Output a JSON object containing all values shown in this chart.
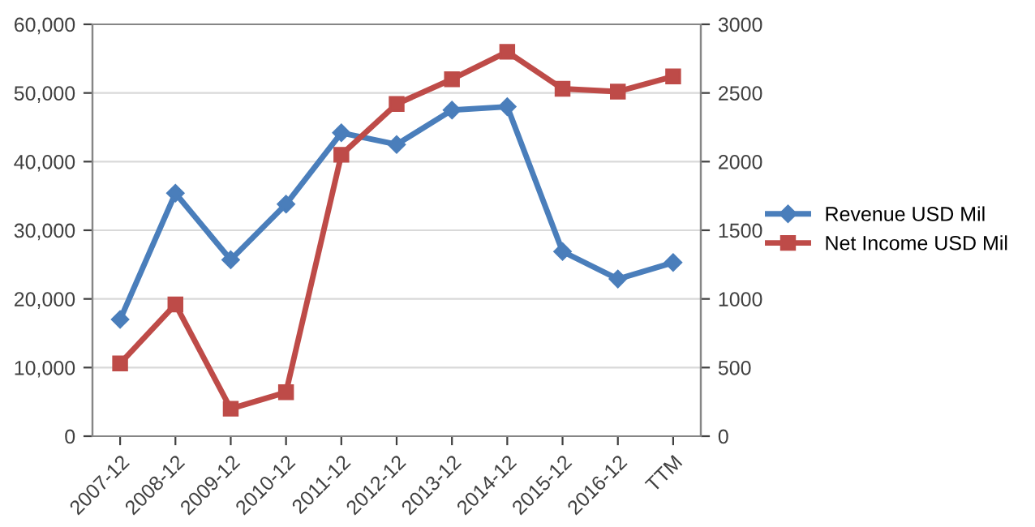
{
  "chart_data": {
    "type": "line",
    "categories": [
      "2007-12",
      "2008-12",
      "2009-12",
      "2010-12",
      "2011-12",
      "2012-12",
      "2013-12",
      "2014-12",
      "2015-12",
      "2016-12",
      "TTM"
    ],
    "series": [
      {
        "name": "Revenue USD Mil",
        "color": "#4a7ebb",
        "marker": "diamond",
        "values": [
          17000,
          35400,
          25700,
          33800,
          44200,
          42500,
          47500,
          48000,
          26900,
          22900,
          25300
        ]
      },
      {
        "name": "Net Income USD Mil",
        "color": "#be4b48",
        "marker": "square",
        "axis": "y2",
        "values": [
          530,
          960,
          200,
          320,
          2050,
          2420,
          2600,
          2800,
          2530,
          2510,
          2620
        ]
      }
    ],
    "ylim": [
      0,
      60000
    ],
    "yticks": [
      {
        "value": 0,
        "label": "0"
      },
      {
        "value": 10000,
        "label": "10,000"
      },
      {
        "value": 20000,
        "label": "20,000"
      },
      {
        "value": 30000,
        "label": "30,000"
      },
      {
        "value": 40000,
        "label": "40,000"
      },
      {
        "value": 50000,
        "label": "50,000"
      },
      {
        "value": 60000,
        "label": "60,000"
      }
    ],
    "y2lim": [
      0,
      3000
    ],
    "y2ticks": [
      0,
      500,
      1000,
      1500,
      2000,
      2500,
      3000
    ],
    "grid": "y",
    "legend": "right",
    "line_style": "solid"
  }
}
